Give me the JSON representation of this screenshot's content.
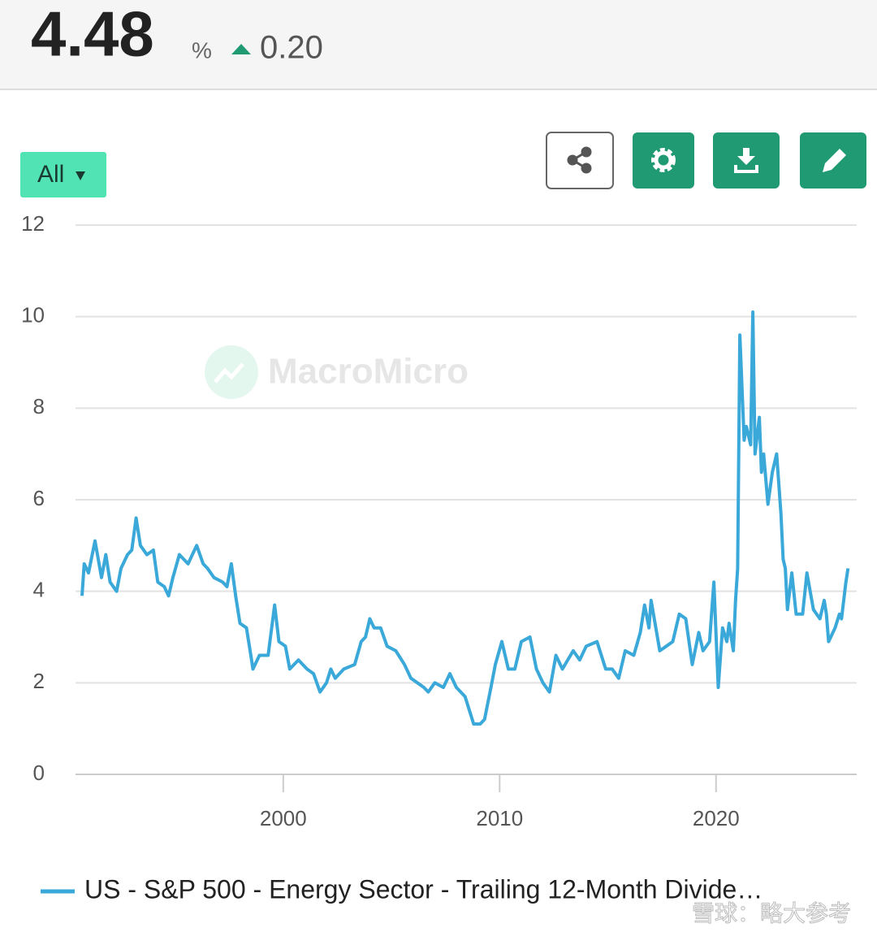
{
  "header": {
    "value": "4.48",
    "unit": "%",
    "change": "0.20"
  },
  "controls": {
    "range": "All"
  },
  "watermark": "MacroMicro",
  "corner_watermark": "雪球：略大参考",
  "chart_data": {
    "type": "line",
    "x": [
      1990.7,
      1990.8,
      1991.0,
      1991.3,
      1991.6,
      1991.8,
      1992.0,
      1992.3,
      1992.5,
      1992.8,
      1993.0,
      1993.2,
      1993.4,
      1993.7,
      1994.0,
      1994.2,
      1994.5,
      1994.7,
      1994.9,
      1995.2,
      1995.6,
      1996.0,
      1996.3,
      1996.5,
      1996.8,
      1997.2,
      1997.4,
      1997.6,
      1997.8,
      1998.0,
      1998.3,
      1998.5,
      1998.6,
      1998.9,
      1999.3,
      1999.6,
      1999.8,
      2000.1,
      2000.3,
      2000.7,
      2001.1,
      2001.4,
      2001.7,
      2002.0,
      2002.2,
      2002.4,
      2002.8,
      2003.3,
      2003.6,
      2003.8,
      2004.0,
      2004.2,
      2004.5,
      2004.8,
      2005.2,
      2005.6,
      2005.9,
      2006.2,
      2006.5,
      2006.7,
      2007.0,
      2007.4,
      2007.7,
      2008.0,
      2008.4,
      2008.6,
      2008.8,
      2009.1,
      2009.3,
      2009.6,
      2009.8,
      2010.1,
      2010.4,
      2010.7,
      2011.0,
      2011.4,
      2011.7,
      2012.0,
      2012.3,
      2012.6,
      2012.9,
      2013.4,
      2013.7,
      2014.0,
      2014.5,
      2014.9,
      2015.2,
      2015.5,
      2015.8,
      2016.2,
      2016.5,
      2016.7,
      2016.9,
      2017.0,
      2017.4,
      2017.7,
      2018.0,
      2018.3,
      2018.6,
      2018.9,
      2019.2,
      2019.4,
      2019.7,
      2019.9,
      2020.1,
      2020.3,
      2020.5,
      2020.6,
      2020.8,
      2020.9,
      2021.0,
      2021.1,
      2021.3,
      2021.4,
      2021.6,
      2021.7,
      2021.8,
      2022.0,
      2022.1,
      2022.2,
      2022.4,
      2022.6,
      2022.8,
      2023.0,
      2023.1,
      2023.2,
      2023.3,
      2023.5,
      2023.7,
      2024.0,
      2024.2,
      2024.5,
      2024.8,
      2025.0,
      2025.1,
      2025.2,
      2025.5,
      2025.7,
      2025.8,
      2026.0,
      2026.1
    ],
    "series": [
      {
        "name": "US - S&P 500 - Energy Sector - Trailing 12-Month Divide…",
        "color": "#3aa8d8",
        "values": [
          3.9,
          4.6,
          4.4,
          5.1,
          4.3,
          4.8,
          4.2,
          4.0,
          4.5,
          4.8,
          4.9,
          5.6,
          5.0,
          4.8,
          4.9,
          4.2,
          4.1,
          3.9,
          4.3,
          4.8,
          4.6,
          5.0,
          4.6,
          4.5,
          4.3,
          4.2,
          4.1,
          4.6,
          3.9,
          3.3,
          3.2,
          2.6,
          2.3,
          2.6,
          2.6,
          3.7,
          2.9,
          2.8,
          2.3,
          2.5,
          2.3,
          2.2,
          1.8,
          2.0,
          2.3,
          2.1,
          2.3,
          2.4,
          2.9,
          3.0,
          3.4,
          3.2,
          3.2,
          2.8,
          2.7,
          2.4,
          2.1,
          2.0,
          1.9,
          1.8,
          2.0,
          1.9,
          2.2,
          1.9,
          1.7,
          1.4,
          1.1,
          1.1,
          1.2,
          1.9,
          2.4,
          2.9,
          2.3,
          2.3,
          2.9,
          3.0,
          2.3,
          2.0,
          1.8,
          2.6,
          2.3,
          2.7,
          2.5,
          2.8,
          2.9,
          2.3,
          2.3,
          2.1,
          2.7,
          2.6,
          3.1,
          3.7,
          3.2,
          3.8,
          2.7,
          2.8,
          2.9,
          3.5,
          3.4,
          2.4,
          3.1,
          2.7,
          2.9,
          4.2,
          1.9,
          3.2,
          2.9,
          3.3,
          2.7,
          3.8,
          4.5,
          9.6,
          7.3,
          7.6,
          7.2,
          10.1,
          7.0,
          7.8,
          6.6,
          7.0,
          5.9,
          6.6,
          7.0,
          5.7,
          4.7,
          4.5,
          3.6,
          4.4,
          3.5,
          3.5,
          4.4,
          3.6,
          3.4,
          3.8,
          3.5,
          2.9,
          3.2,
          3.5,
          3.4,
          4.2,
          4.5
        ]
      }
    ],
    "xlim": [
      1990.4,
      2026.5
    ],
    "xticks": [
      2000,
      2010,
      2020
    ],
    "ylim": [
      0,
      12
    ],
    "yticks": [
      0,
      2,
      4,
      6,
      8,
      10,
      12
    ],
    "grid": true
  }
}
